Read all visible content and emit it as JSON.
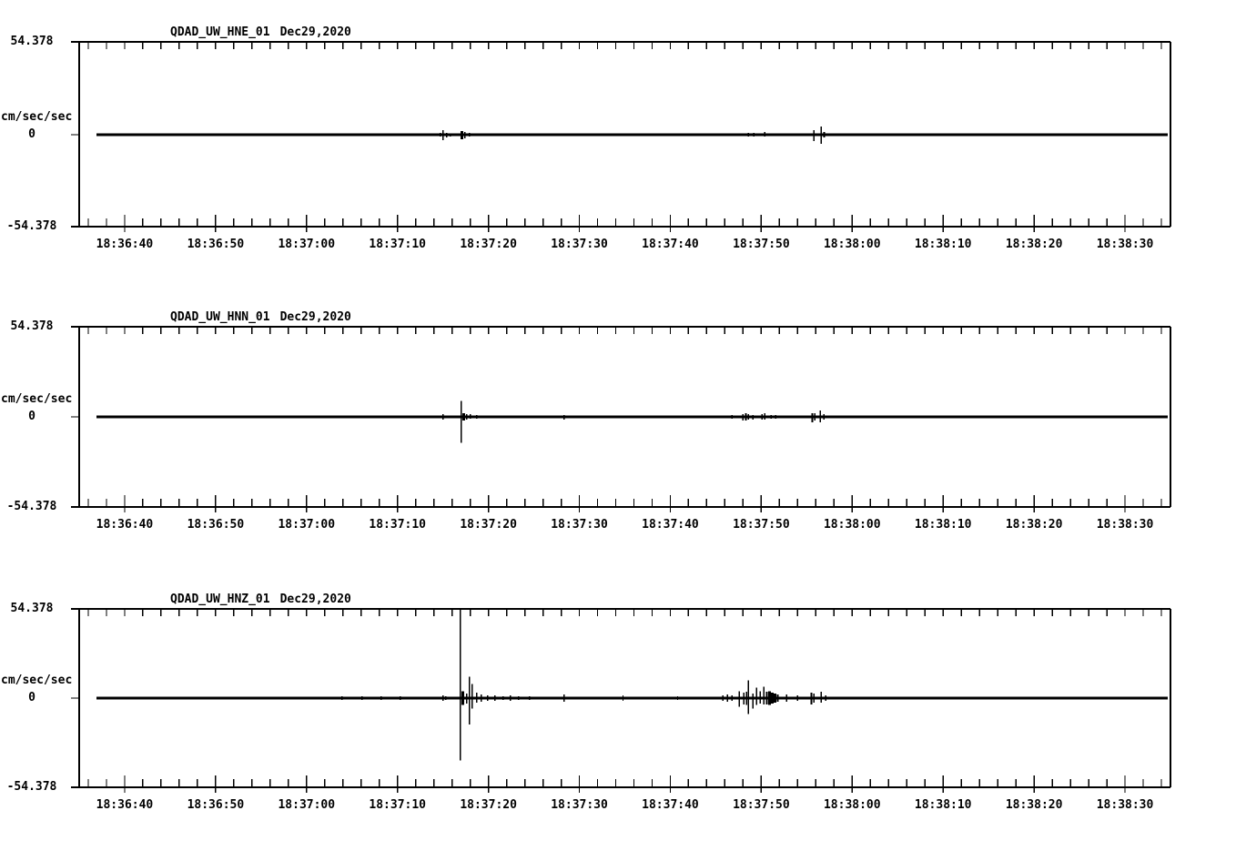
{
  "meta": {
    "description": "Three-component seismogram waveform display",
    "background_color": "#ffffff",
    "trace_color": "#000000",
    "text_color": "#000000"
  },
  "axes": {
    "y": {
      "top_label": "54.378",
      "zero_label": "0",
      "bottom_label": "-54.378",
      "unit_label": "cm/sec/sec",
      "ylim": [
        -54.378,
        54.378
      ]
    },
    "x": {
      "tick_labels": [
        "18:36:40",
        "18:36:50",
        "18:37:00",
        "18:37:10",
        "18:37:20",
        "18:37:30",
        "18:37:40",
        "18:37:50",
        "18:38:00",
        "18:38:10",
        "18:38:20",
        "18:38:30"
      ],
      "axis_start": "18:36:35",
      "axis_end": "18:38:35",
      "minor_tick_seconds": 2,
      "major_tick_seconds": 10,
      "grid": false
    }
  },
  "chart_data": [
    {
      "type": "line",
      "channel": "HNE",
      "title": "QDAD_UW_HNE_01",
      "date": "Dec29,2020",
      "ylabel": "cm/sec/sec",
      "baseline_value": 0,
      "spike_format": "[seconds_after_18:36:35, up_amplitude_cm_s2, down_amplitude_cm_s2, optional_stroke_px]",
      "spikes": [
        [
          39.7,
          1.1,
          1.1
        ],
        [
          40.0,
          2.7,
          3.2
        ],
        [
          40.4,
          1.1,
          1.6
        ],
        [
          40.8,
          0.6,
          1.1
        ],
        [
          42.1,
          2.2,
          2.7,
          3
        ],
        [
          42.4,
          1.6,
          2.2
        ],
        [
          42.9,
          1.1,
          1.1
        ],
        [
          53.2,
          0.6,
          0.6
        ],
        [
          73.6,
          1.1,
          1.1
        ],
        [
          74.2,
          1.1,
          1.1
        ],
        [
          75.4,
          1.6,
          1.1
        ],
        [
          75.9,
          0.6,
          0.6
        ],
        [
          80.8,
          2.7,
          3.8
        ],
        [
          81.6,
          4.8,
          5.4
        ],
        [
          81.9,
          1.6,
          1.6,
          2
        ]
      ]
    },
    {
      "type": "line",
      "channel": "HNN",
      "title": "QDAD_UW_HNN_01",
      "date": "Dec29,2020",
      "ylabel": "cm/sec/sec",
      "baseline_value": 0,
      "spike_format": "[seconds_after_18:36:35, up_amplitude_cm_s2, down_amplitude_cm_s2, optional_stroke_px]",
      "spikes": [
        [
          40.0,
          1.6,
          1.6
        ],
        [
          42.0,
          9.7,
          15.6
        ],
        [
          42.3,
          2.2,
          2.2,
          3
        ],
        [
          42.6,
          1.6,
          1.6
        ],
        [
          43.0,
          1.6,
          1.1
        ],
        [
          43.7,
          1.1,
          1.1
        ],
        [
          53.3,
          1.1,
          1.6
        ],
        [
          71.8,
          1.1,
          1.1
        ],
        [
          73.0,
          1.6,
          2.2
        ],
        [
          73.3,
          2.2,
          2.2,
          2
        ],
        [
          73.6,
          1.6,
          1.6
        ],
        [
          74.1,
          1.1,
          1.6
        ],
        [
          75.1,
          1.6,
          1.6
        ],
        [
          75.4,
          2.2,
          1.6
        ],
        [
          76.1,
          1.1,
          1.1
        ],
        [
          76.6,
          1.1,
          1.1
        ],
        [
          80.6,
          2.2,
          3.2,
          2
        ],
        [
          80.9,
          2.2,
          2.2
        ],
        [
          81.5,
          3.8,
          3.2
        ],
        [
          81.9,
          1.6,
          1.6
        ]
      ]
    },
    {
      "type": "line",
      "channel": "HNZ",
      "title": "QDAD_UW_HNZ_01",
      "date": "Dec29,2020",
      "ylabel": "cm/sec/sec",
      "baseline_value": 0,
      "spike_format": "[seconds_after_18:36:35, up_amplitude_cm_s2, down_amplitude_cm_s2, optional_stroke_px]",
      "spikes": [
        [
          28.9,
          1.1,
          1.1
        ],
        [
          31.1,
          1.1,
          1.1
        ],
        [
          33.2,
          1.1,
          1.1
        ],
        [
          35.3,
          1.1,
          1.1
        ],
        [
          40.0,
          1.6,
          1.6
        ],
        [
          40.3,
          1.1,
          1.1
        ],
        [
          41.9,
          55.0,
          38.0
        ],
        [
          42.2,
          4.3,
          4.3,
          3
        ],
        [
          42.6,
          2.7,
          3.2
        ],
        [
          42.9,
          13.0,
          16.2
        ],
        [
          43.2,
          8.6,
          6.5
        ],
        [
          43.7,
          3.2,
          2.7
        ],
        [
          44.2,
          2.2,
          2.2
        ],
        [
          44.9,
          1.6,
          1.6
        ],
        [
          45.7,
          1.6,
          1.6
        ],
        [
          46.6,
          1.1,
          1.1
        ],
        [
          47.4,
          1.6,
          1.6
        ],
        [
          48.3,
          1.1,
          1.1
        ],
        [
          49.5,
          1.1,
          1.1
        ],
        [
          53.3,
          2.2,
          2.2
        ],
        [
          59.8,
          1.6,
          1.6
        ],
        [
          65.8,
          1.1,
          1.1
        ],
        [
          70.8,
          1.6,
          1.6
        ],
        [
          71.3,
          2.2,
          2.2
        ],
        [
          71.8,
          1.6,
          1.6
        ],
        [
          72.6,
          4.3,
          5.4
        ],
        [
          73.1,
          3.2,
          3.8
        ],
        [
          73.4,
          3.8,
          4.3
        ],
        [
          73.6,
          10.8,
          9.7
        ],
        [
          74.1,
          2.7,
          6.5
        ],
        [
          74.5,
          6.5,
          4.3
        ],
        [
          74.9,
          4.3,
          3.2
        ],
        [
          75.3,
          7.0,
          3.8
        ],
        [
          75.6,
          3.8,
          3.8,
          2
        ],
        [
          75.9,
          4.3,
          4.3,
          3
        ],
        [
          76.2,
          3.2,
          3.2,
          3
        ],
        [
          76.5,
          2.7,
          2.7,
          3
        ],
        [
          76.8,
          2.2,
          2.2,
          2
        ],
        [
          77.8,
          2.2,
          2.2
        ],
        [
          79.0,
          1.6,
          1.6
        ],
        [
          80.5,
          3.2,
          3.8,
          2
        ],
        [
          80.8,
          2.7,
          2.7
        ],
        [
          81.6,
          3.8,
          2.7
        ],
        [
          82.1,
          1.6,
          1.6
        ],
        [
          85.3,
          0.6,
          0.6
        ],
        [
          105.0,
          0.6,
          0.6
        ]
      ]
    }
  ]
}
